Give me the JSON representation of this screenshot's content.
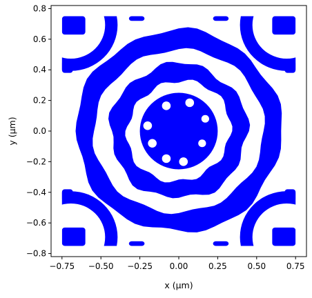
{
  "chart_data": {
    "type": "heatmap",
    "xlabel": "x (μm)",
    "ylabel": "y (μm)",
    "xlim": [
      -0.82,
      0.82
    ],
    "ylim": [
      -0.82,
      0.82
    ],
    "x_ticks": [
      -0.75,
      -0.5,
      -0.25,
      0.0,
      0.25,
      0.5,
      0.75
    ],
    "x_tick_labels": [
      "−0.75",
      "−0.50",
      "−0.25",
      "0.00",
      "0.25",
      "0.50",
      "0.75"
    ],
    "y_ticks": [
      -0.8,
      -0.6,
      -0.4,
      -0.2,
      0.0,
      0.2,
      0.4,
      0.6,
      0.8
    ],
    "y_tick_labels": [
      "−0.8",
      "−0.6",
      "−0.4",
      "−0.2",
      "0.0",
      "0.2",
      "0.4",
      "0.6",
      "0.8"
    ],
    "grid": false,
    "fill_color": "#0000ff",
    "background_color": "#ffffff",
    "design_region": [
      -0.75,
      0.75,
      -0.75,
      0.75
    ],
    "center_disk": {
      "cx": 0.0,
      "cy": 0.0,
      "r": 0.25
    },
    "center_holes": [
      {
        "x": -0.08,
        "y": 0.165,
        "r": 0.028
      },
      {
        "x": 0.07,
        "y": 0.185,
        "r": 0.028
      },
      {
        "x": 0.17,
        "y": 0.08,
        "r": 0.025
      },
      {
        "x": -0.2,
        "y": 0.035,
        "r": 0.028
      },
      {
        "x": -0.17,
        "y": -0.08,
        "r": 0.028
      },
      {
        "x": 0.15,
        "y": -0.08,
        "r": 0.025
      },
      {
        "x": -0.08,
        "y": -0.18,
        "r": 0.028
      },
      {
        "x": 0.03,
        "y": -0.2,
        "r": 0.028
      }
    ],
    "rings": [
      {
        "r_inner": 0.33,
        "r_outer": 0.44,
        "jitter": 0.025
      },
      {
        "r_inner": 0.54,
        "r_outer": 0.66,
        "jitter": 0.022
      }
    ],
    "corner_arcs": {
      "distance": 0.98,
      "r_inner": 0.22,
      "r_outer": 0.3
    },
    "edge_bars": [
      {
        "x0": -0.75,
        "y0": 0.63,
        "x1": -0.6,
        "y1": 0.75
      },
      {
        "x0": 0.6,
        "y0": 0.63,
        "x1": 0.75,
        "y1": 0.75
      },
      {
        "x0": -0.75,
        "y0": -0.75,
        "x1": -0.6,
        "y1": -0.63
      },
      {
        "x0": 0.6,
        "y0": -0.75,
        "x1": 0.75,
        "y1": -0.63
      },
      {
        "x0": -0.32,
        "y0": 0.72,
        "x1": -0.22,
        "y1": 0.75
      },
      {
        "x0": 0.22,
        "y0": 0.72,
        "x1": 0.32,
        "y1": 0.75
      },
      {
        "x0": -0.32,
        "y0": -0.75,
        "x1": -0.22,
        "y1": -0.72
      },
      {
        "x0": 0.22,
        "y0": -0.75,
        "x1": 0.32,
        "y1": -0.72
      },
      {
        "x0": -0.75,
        "y0": 0.38,
        "x1": -0.68,
        "y1": 0.46
      },
      {
        "x0": 0.68,
        "y0": 0.38,
        "x1": 0.75,
        "y1": 0.46
      },
      {
        "x0": -0.75,
        "y0": -0.46,
        "x1": -0.68,
        "y1": -0.38
      },
      {
        "x0": 0.68,
        "y0": -0.46,
        "x1": 0.75,
        "y1": -0.38
      }
    ]
  }
}
